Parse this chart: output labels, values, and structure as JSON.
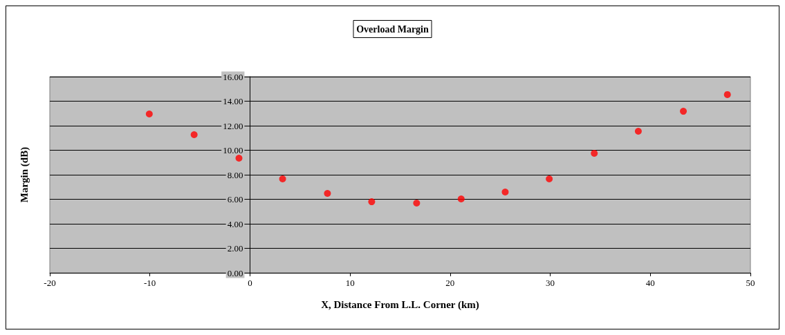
{
  "chart_data": {
    "type": "scatter",
    "title": "Overload Margin",
    "xlabel": "X, Distance From L.L. Corner (km)",
    "ylabel": "Margin (dB)",
    "x": [
      -10.06,
      -5.58,
      -1.1,
      3.26,
      7.74,
      12.16,
      16.65,
      21.1,
      25.5,
      29.9,
      34.4,
      38.8,
      43.3,
      47.7
    ],
    "series": [
      {
        "color": "#ff0000",
        "values": [
          12.96,
          11.27,
          9.35,
          7.66,
          6.48,
          5.8,
          5.69,
          6.03,
          6.59,
          7.66,
          9.75,
          11.55,
          13.18,
          14.54
        ]
      }
    ],
    "xlim": [
      -20,
      50
    ],
    "xticks": [
      -20,
      -10,
      0,
      10,
      20,
      30,
      40,
      50
    ],
    "ylim": [
      0,
      16
    ],
    "yticks": [
      {
        "value": 0,
        "label": "0.00"
      },
      {
        "value": 2,
        "label": "2.00"
      },
      {
        "value": 4,
        "label": "4.00"
      },
      {
        "value": 6,
        "label": "6.00"
      },
      {
        "value": 8,
        "label": "8.00"
      },
      {
        "value": 10,
        "label": "10.00"
      },
      {
        "value": 12,
        "label": "12.00"
      },
      {
        "value": 14,
        "label": "14.00"
      },
      {
        "value": 16,
        "label": "16.00"
      }
    ],
    "grid": "y",
    "marker": "circle"
  }
}
